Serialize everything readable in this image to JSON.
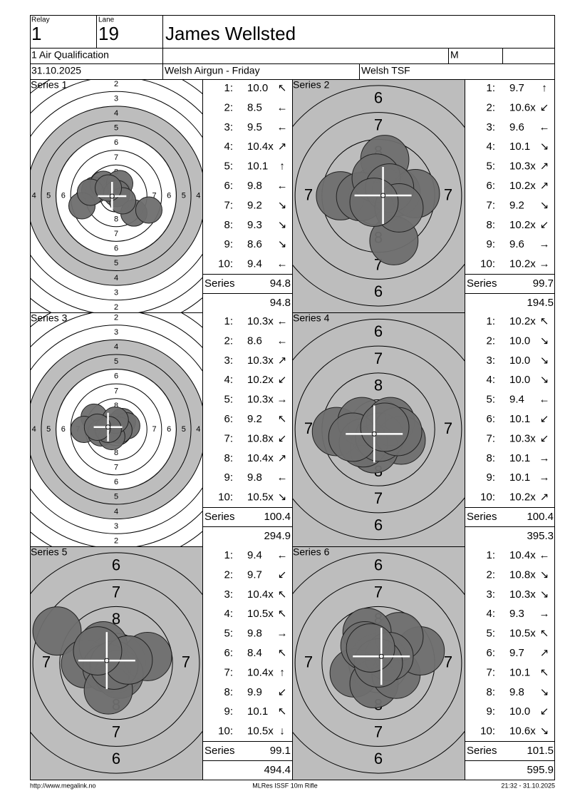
{
  "header": {
    "relay_label": "Relay",
    "relay": "1",
    "lane_label": "Lane",
    "lane": "19",
    "name": "James Wellsted",
    "event": "1 Air Qualification",
    "gender": "M",
    "date": "31.10.2025",
    "competition": "Welsh Airgun - Friday",
    "club": "Welsh TSF"
  },
  "series": [
    {
      "title": "Series 1",
      "rings": [
        "2",
        "3",
        "4",
        "5",
        "6",
        "7",
        "8"
      ],
      "shots": [
        [
          "1:",
          "10.0",
          "↖"
        ],
        [
          "2:",
          "8.5",
          "←"
        ],
        [
          "3:",
          "9.5",
          "←"
        ],
        [
          "4:",
          "10.4x",
          "↗"
        ],
        [
          "5:",
          "10.1",
          "↑"
        ],
        [
          "6:",
          "9.8",
          "←"
        ],
        [
          "7:",
          "9.2",
          "↘"
        ],
        [
          "8:",
          "9.3",
          "↘"
        ],
        [
          "9:",
          "8.6",
          "↘"
        ],
        [
          "10:",
          "9.4",
          "←"
        ]
      ],
      "series_label": "Series",
      "total": "94.8",
      "cumulative": "94.8"
    },
    {
      "title": "Series 2",
      "rings": [
        "6",
        "7",
        "8"
      ],
      "shots": [
        [
          "1:",
          "9.7",
          "↑"
        ],
        [
          "2:",
          "10.6x",
          "↙"
        ],
        [
          "3:",
          "9.6",
          "←"
        ],
        [
          "4:",
          "10.1",
          "↘"
        ],
        [
          "5:",
          "10.3x",
          "↗"
        ],
        [
          "6:",
          "10.2x",
          "↗"
        ],
        [
          "7:",
          "9.2",
          "↘"
        ],
        [
          "8:",
          "10.2x",
          "↙"
        ],
        [
          "9:",
          "9.6",
          "→"
        ],
        [
          "10:",
          "10.2x",
          "→"
        ]
      ],
      "series_label": "Series",
      "total": "99.7",
      "cumulative": "194.5"
    },
    {
      "title": "Series 3",
      "rings": [
        "2",
        "3",
        "4",
        "5",
        "6",
        "7",
        "8"
      ],
      "shots": [
        [
          "1:",
          "10.3x",
          "←"
        ],
        [
          "2:",
          "8.6",
          "←"
        ],
        [
          "3:",
          "10.3x",
          "↗"
        ],
        [
          "4:",
          "10.2x",
          "↙"
        ],
        [
          "5:",
          "10.3x",
          "→"
        ],
        [
          "6:",
          "9.2",
          "↖"
        ],
        [
          "7:",
          "10.8x",
          "↙"
        ],
        [
          "8:",
          "10.4x",
          "↗"
        ],
        [
          "9:",
          "9.8",
          "←"
        ],
        [
          "10:",
          "10.5x",
          "↘"
        ]
      ],
      "series_label": "Series",
      "total": "100.4",
      "cumulative": "294.9"
    },
    {
      "title": "Series 4",
      "rings": [
        "6",
        "7",
        "8"
      ],
      "shots": [
        [
          "1:",
          "10.2x",
          "↖"
        ],
        [
          "2:",
          "10.0",
          "↘"
        ],
        [
          "3:",
          "10.0",
          "↘"
        ],
        [
          "4:",
          "10.0",
          "↘"
        ],
        [
          "5:",
          "9.4",
          "←"
        ],
        [
          "6:",
          "10.1",
          "↙"
        ],
        [
          "7:",
          "10.3x",
          "↙"
        ],
        [
          "8:",
          "10.1",
          "→"
        ],
        [
          "9:",
          "10.1",
          "→"
        ],
        [
          "10:",
          "10.2x",
          "↗"
        ]
      ],
      "series_label": "Series",
      "total": "100.4",
      "cumulative": "395.3"
    },
    {
      "title": "Series 5",
      "rings": [
        "6",
        "7",
        "8"
      ],
      "shots": [
        [
          "1:",
          "9.4",
          "←"
        ],
        [
          "2:",
          "9.7",
          "↙"
        ],
        [
          "3:",
          "10.4x",
          "↖"
        ],
        [
          "4:",
          "10.5x",
          "↖"
        ],
        [
          "5:",
          "9.8",
          "→"
        ],
        [
          "6:",
          "8.4",
          "↖"
        ],
        [
          "7:",
          "10.4x",
          "↑"
        ],
        [
          "8:",
          "9.9",
          "↙"
        ],
        [
          "9:",
          "10.1",
          "↖"
        ],
        [
          "10:",
          "10.5x",
          "↓"
        ]
      ],
      "series_label": "Series",
      "total": "99.1",
      "cumulative": "494.4"
    },
    {
      "title": "Series 6",
      "rings": [
        "6",
        "7",
        "8"
      ],
      "shots": [
        [
          "1:",
          "10.4x",
          "←"
        ],
        [
          "2:",
          "10.8x",
          "↘"
        ],
        [
          "3:",
          "10.3x",
          "↘"
        ],
        [
          "4:",
          "9.3",
          "→"
        ],
        [
          "5:",
          "10.5x",
          "↖"
        ],
        [
          "6:",
          "9.7",
          "↗"
        ],
        [
          "7:",
          "10.1",
          "↖"
        ],
        [
          "8:",
          "9.8",
          "↘"
        ],
        [
          "9:",
          "10.0",
          "↙"
        ],
        [
          "10:",
          "10.6x",
          "↘"
        ]
      ],
      "series_label": "Series",
      "total": "101.5",
      "cumulative": "595.9"
    }
  ],
  "footer": {
    "url": "http://www.megalink.no",
    "software": "MLRes ISSF 10m Rifle",
    "timestamp": "21:32 - 31.10.2025"
  }
}
